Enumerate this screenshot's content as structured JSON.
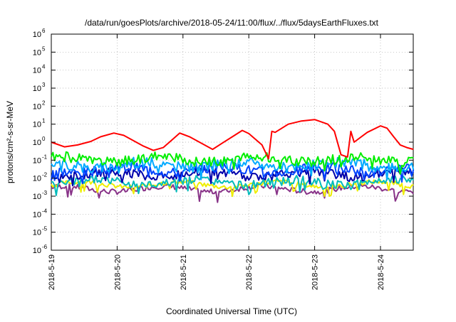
{
  "chart_data": {
    "type": "line",
    "title": "/data/run/goesPlots/archive/2018-05-24/11:00/flux/../flux/5daysEarthFluxes.txt",
    "xlabel": "Coordinated Universal Time (UTC)",
    "ylabel": "protons/cm²-s-sr-MeV",
    "y_scale": "log",
    "ylim": [
      1e-06,
      1000000.0
    ],
    "y_ticks": [
      {
        "value": 1e-06,
        "base": "10",
        "exp": "-6"
      },
      {
        "value": 1e-05,
        "base": "10",
        "exp": "-5"
      },
      {
        "value": 0.0001,
        "base": "10",
        "exp": "-4"
      },
      {
        "value": 0.001,
        "base": "10",
        "exp": "-3"
      },
      {
        "value": 0.01,
        "base": "10",
        "exp": "-2"
      },
      {
        "value": 0.1,
        "base": "10",
        "exp": "-1"
      },
      {
        "value": 1,
        "base": "10",
        "exp": "0"
      },
      {
        "value": 10,
        "base": "10",
        "exp": "1"
      },
      {
        "value": 100,
        "base": "10",
        "exp": "2"
      },
      {
        "value": 1000,
        "base": "10",
        "exp": "3"
      },
      {
        "value": 10000,
        "base": "10",
        "exp": "4"
      },
      {
        "value": 100000,
        "base": "10",
        "exp": "5"
      },
      {
        "value": 1000000,
        "base": "10",
        "exp": "6"
      }
    ],
    "xlim": [
      0,
      5.5
    ],
    "x_ticks": [
      "2018-5-19",
      "2018-5-20",
      "2018-5-21",
      "2018-5-22",
      "2018-5-23",
      "2018-5-24"
    ],
    "grid": true,
    "legend": "none",
    "series": [
      {
        "color": "#ff0000",
        "x": [
          0,
          0.2,
          0.4,
          0.6,
          0.75,
          0.95,
          1.1,
          1.25,
          1.4,
          1.55,
          1.7,
          1.85,
          1.95,
          2.1,
          2.3,
          2.45,
          2.6,
          2.75,
          2.9,
          3.0,
          3.2,
          3.3,
          3.35,
          3.4,
          3.6,
          3.8,
          4.0,
          4.2,
          4.3,
          4.4,
          4.5,
          4.55,
          4.6,
          4.8,
          5.0,
          5.1,
          5.2,
          5.3,
          5.4,
          5.5
        ],
        "y": [
          1.0,
          0.55,
          0.7,
          1.1,
          2.0,
          3.2,
          2.4,
          1.2,
          0.6,
          0.35,
          0.5,
          1.5,
          3.2,
          2.0,
          0.8,
          0.4,
          0.9,
          2.0,
          4.5,
          3.0,
          0.7,
          0.12,
          4.0,
          3.5,
          10.0,
          15.0,
          18.0,
          10.0,
          4.0,
          0.2,
          0.15,
          4.0,
          1.0,
          3.5,
          8.0,
          6.0,
          2.0,
          0.7,
          0.5,
          0.4
        ]
      },
      {
        "color": "#00ee00",
        "base": 0.11,
        "amp": 0.55,
        "seed": 1
      },
      {
        "color": "#00aaff",
        "base": 0.055,
        "amp": 0.6,
        "seed": 2
      },
      {
        "color": "#0044ff",
        "base": 0.03,
        "amp": 0.55,
        "seed": 3
      },
      {
        "color": "#0000aa",
        "base": 0.017,
        "amp": 0.5,
        "seed": 4
      },
      {
        "color": "#00bbbb",
        "base": 0.006,
        "amp": 0.45,
        "seed": 5
      },
      {
        "color": "#eeee00",
        "base": 0.0045,
        "amp": 0.25,
        "seed": 6
      },
      {
        "color": "#883388",
        "base": 0.0025,
        "amp": 0.3,
        "seed": 7
      }
    ]
  }
}
